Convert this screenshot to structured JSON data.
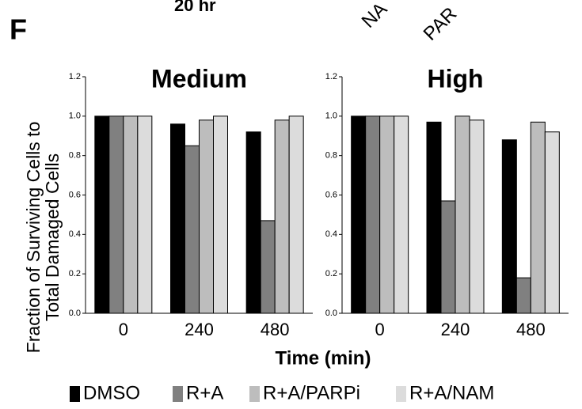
{
  "panel_label": "F",
  "header_texts": [
    "20 hr",
    "NA",
    "PAR"
  ],
  "ylabel": [
    "Fraction of Surviving Cells to",
    "Total Damaged Cells"
  ],
  "xlabel": "Time (min)",
  "chart_data": [
    {
      "type": "bar",
      "title": "Medium",
      "categories": [
        "0",
        "240",
        "480"
      ],
      "ylim": [
        0,
        1.2
      ],
      "yticks": [
        {
          "value": 0,
          "label": "0.0"
        },
        0.2,
        0.4,
        0.6,
        0.8,
        {
          "value": 1,
          "label": "1.0"
        },
        1.2
      ],
      "series": [
        {
          "name": "DMSO",
          "color": "#000000",
          "values": [
            1.0,
            0.96,
            0.92
          ]
        },
        {
          "name": "R+A",
          "color": "#808080",
          "values": [
            1.0,
            0.85,
            0.47
          ]
        },
        {
          "name": "R+A/PARPi",
          "color": "#bdbdbd",
          "values": [
            1.0,
            0.98,
            0.98
          ]
        },
        {
          "name": "R+A/NAM",
          "color": "#dcdcdc",
          "values": [
            1.0,
            1.0,
            1.0
          ]
        }
      ]
    },
    {
      "type": "bar",
      "title": "High",
      "categories": [
        "0",
        "240",
        "480"
      ],
      "ylim": [
        0,
        1.2
      ],
      "yticks": [
        {
          "value": 0,
          "label": "0.0"
        },
        0.2,
        0.4,
        0.6,
        0.8,
        {
          "value": 1,
          "label": "1.0"
        },
        1.2
      ],
      "series": [
        {
          "name": "DMSO",
          "color": "#000000",
          "values": [
            1.0,
            0.97,
            0.88
          ]
        },
        {
          "name": "R+A",
          "color": "#808080",
          "values": [
            1.0,
            0.57,
            0.18
          ]
        },
        {
          "name": "R+A/PARPi",
          "color": "#bdbdbd",
          "values": [
            1.0,
            1.0,
            0.97
          ]
        },
        {
          "name": "R+A/NAM",
          "color": "#dcdcdc",
          "values": [
            1.0,
            0.98,
            0.92
          ]
        }
      ]
    }
  ]
}
